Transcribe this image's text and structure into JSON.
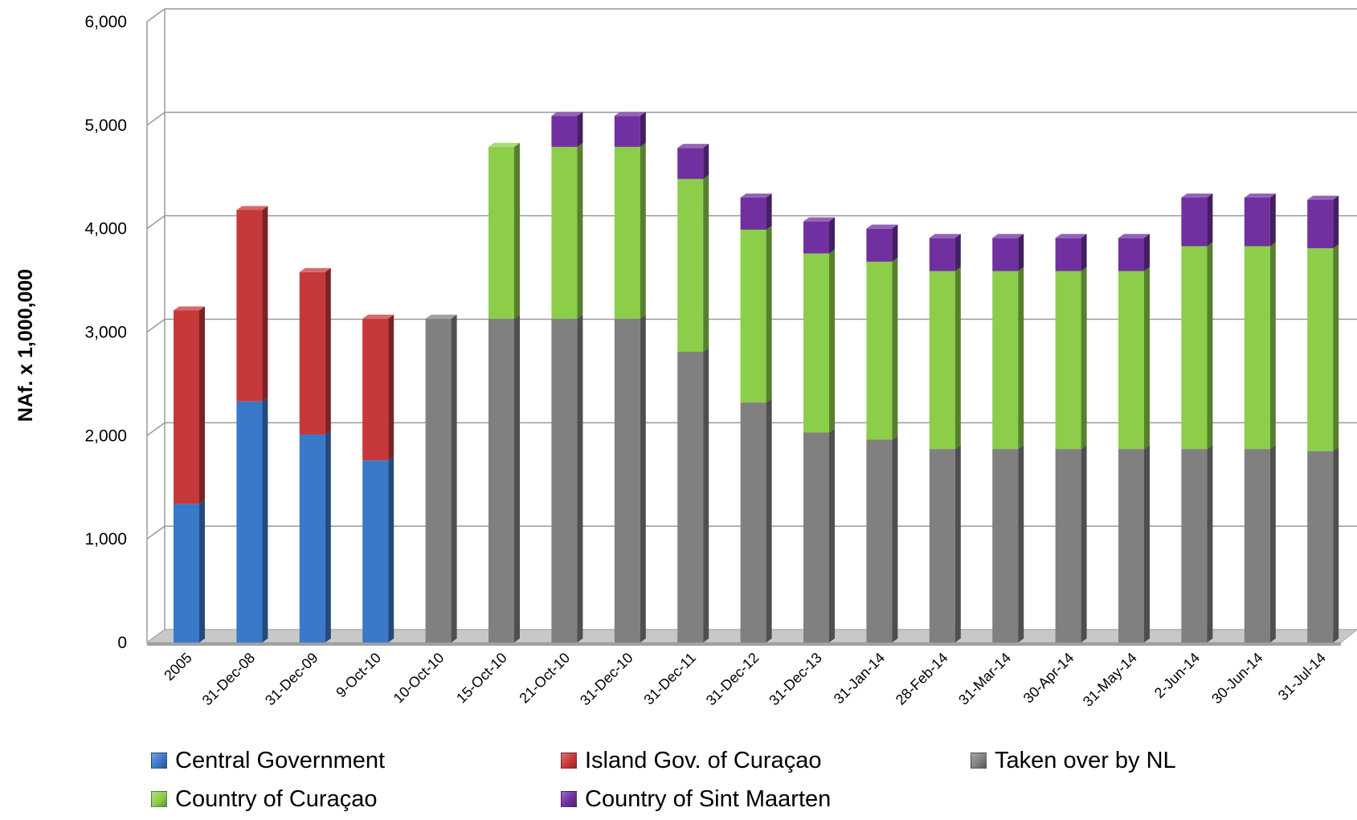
{
  "chart_data": {
    "type": "bar",
    "stacked": true,
    "style": "3d-columns",
    "title": "",
    "xlabel": "",
    "ylabel": "NAf. x 1,000,000",
    "ylim": [
      0,
      6000
    ],
    "yticks": [
      0,
      1000,
      2000,
      3000,
      4000,
      5000,
      6000
    ],
    "ytick_labels": [
      "0",
      "1,000",
      "2,000",
      "3,000",
      "4,000",
      "5,000",
      "6,000"
    ],
    "grid": true,
    "legend_position": "bottom",
    "categories": [
      "2005",
      "31-Dec-08",
      "31-Dec-09",
      "9-Oct-10",
      "10-Oct-10",
      "15-Oct-10",
      "21-Oct-10",
      "31-Dec-10",
      "31-Dec-11",
      "31-Dec-12",
      "31-Dec-13",
      "31-Jan-14",
      "28-Feb-14",
      "31-Mar-14",
      "30-Apr-14",
      "31-May-14",
      "2-Jun-14",
      "30-Jun-14",
      "31-Jul-14"
    ],
    "series": [
      {
        "name": "Central Government",
        "color": "#3a78c9",
        "values": [
          1340,
          2330,
          2010,
          1760,
          0,
          0,
          0,
          0,
          0,
          0,
          0,
          0,
          0,
          0,
          0,
          0,
          0,
          0,
          0
        ]
      },
      {
        "name": "Island Gov. of Curaçao",
        "color": "#c7383a",
        "values": [
          1870,
          1850,
          1570,
          1370,
          0,
          0,
          0,
          0,
          0,
          0,
          0,
          0,
          0,
          0,
          0,
          0,
          0,
          0,
          0
        ]
      },
      {
        "name": "Taken over by NL",
        "color": "#808080",
        "values": [
          0,
          0,
          0,
          0,
          3130,
          3130,
          3130,
          3130,
          2810,
          2320,
          2030,
          1960,
          1870,
          1870,
          1870,
          1870,
          1870,
          1870,
          1850
        ]
      },
      {
        "name": "Country of Curaçao",
        "color": "#8cce4a",
        "values": [
          0,
          0,
          0,
          0,
          0,
          1660,
          1660,
          1660,
          1670,
          1670,
          1730,
          1720,
          1720,
          1720,
          1720,
          1720,
          1960,
          1960,
          1960
        ]
      },
      {
        "name": "Country of Sint Maarten",
        "color": "#7030a0",
        "values": [
          0,
          0,
          0,
          0,
          0,
          0,
          300,
          300,
          300,
          310,
          310,
          320,
          320,
          320,
          320,
          320,
          470,
          470,
          470
        ]
      }
    ]
  }
}
